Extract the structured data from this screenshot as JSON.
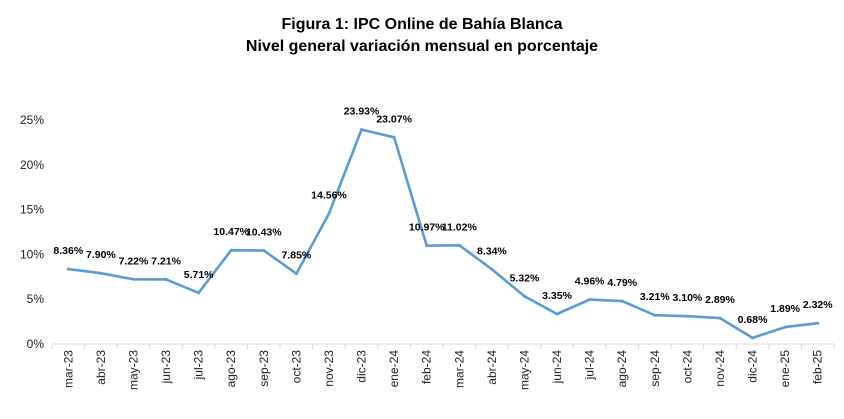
{
  "chart_data": {
    "type": "line",
    "title_line1": "Figura 1: IPC Online de Bahía Blanca",
    "title_line2": "Nivel general variación mensual en porcentaje",
    "xlabel": "",
    "ylabel": "",
    "ylim": [
      0,
      25
    ],
    "yticks": [
      0,
      5,
      10,
      15,
      20,
      25
    ],
    "ytick_labels": [
      "0%",
      "5%",
      "10%",
      "15%",
      "20%",
      "25%"
    ],
    "grid": false,
    "line_color": "#5b9bd5",
    "categories": [
      "mar-23",
      "abr-23",
      "may-23",
      "jun-23",
      "jul-23",
      "ago-23",
      "sep-23",
      "oct-23",
      "nov-23",
      "dic-23",
      "ene-24",
      "feb-24",
      "mar-24",
      "abr-24",
      "may-24",
      "jun-24",
      "jul-24",
      "ago-24",
      "sep-24",
      "oct-24",
      "nov-24",
      "dic-24",
      "ene-25",
      "feb-25"
    ],
    "values": [
      8.36,
      7.9,
      7.22,
      7.21,
      5.71,
      10.47,
      10.43,
      7.85,
      14.56,
      23.93,
      23.07,
      10.97,
      11.02,
      8.34,
      5.32,
      3.35,
      4.96,
      4.79,
      3.21,
      3.1,
      2.89,
      0.68,
      1.89,
      2.32
    ],
    "data_labels": [
      "8.36%",
      "7.90%",
      "7.22%",
      "7.21%",
      "5.71%",
      "10.47%",
      "10.43%",
      "7.85%",
      "14.56%",
      "23.93%",
      "23.07%",
      "10.97%",
      "11.02%",
      "8.34%",
      "5.32%",
      "3.35%",
      "4.96%",
      "4.79%",
      "3.21%",
      "3.10%",
      "2.89%",
      "0.68%",
      "1.89%",
      "2.32%"
    ]
  }
}
